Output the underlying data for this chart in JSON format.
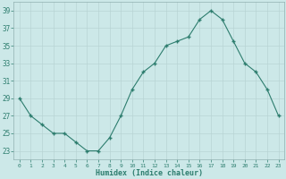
{
  "x": [
    0,
    1,
    2,
    3,
    4,
    5,
    6,
    7,
    8,
    9,
    10,
    11,
    12,
    13,
    14,
    15,
    16,
    17,
    18,
    19,
    20,
    21,
    22,
    23
  ],
  "y": [
    29,
    27,
    26,
    25,
    25,
    24,
    23,
    23,
    24.5,
    27,
    30,
    32,
    33,
    35,
    35.5,
    36,
    38,
    39,
    38,
    35.5,
    33,
    32,
    30,
    27
  ],
  "line_color": "#2d7d6e",
  "marker": "+",
  "marker_color": "#2d7d6e",
  "bg_color": "#cce8e8",
  "grid_color": "#b8d4d4",
  "xlabel": "Humidex (Indice chaleur)",
  "yticks": [
    23,
    25,
    27,
    29,
    31,
    33,
    35,
    37,
    39
  ],
  "xlim": [
    -0.5,
    23.5
  ],
  "ylim": [
    22.0,
    40.0
  ],
  "tick_label_color": "#2d7d6e",
  "xlabel_color": "#2d7d6e",
  "figsize": [
    3.2,
    2.0
  ],
  "dpi": 100
}
